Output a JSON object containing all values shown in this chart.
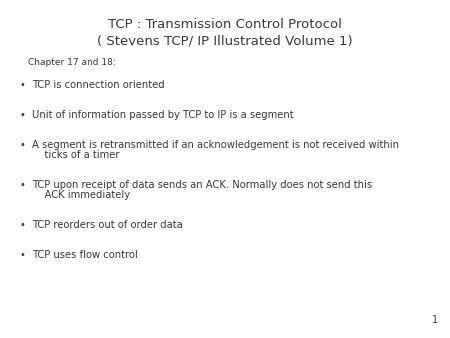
{
  "title_line1": "TCP : Transmission Control Protocol",
  "title_line2": "( Stevens TCP/ IP Illustrated Volume 1)",
  "subtitle": "Chapter 17 and 18:",
  "bullets": [
    "TCP is connection oriented",
    "Unit of information passed by TCP to IP is a segment",
    "A segment is retransmitted if an acknowledgement is not received within\n    ticks of a timer",
    "TCP upon receipt of data sends an ACK. Normally does not send this\n    ACK immediately",
    "TCP reorders out of order data",
    "TCP uses flow control"
  ],
  "page_number": "1",
  "bg_color": "#ffffff",
  "text_color": "#3a3a3a",
  "title_fontsize": 9.5,
  "subtitle_fontsize": 6.5,
  "bullet_fontsize": 7.2,
  "page_fontsize": 7
}
